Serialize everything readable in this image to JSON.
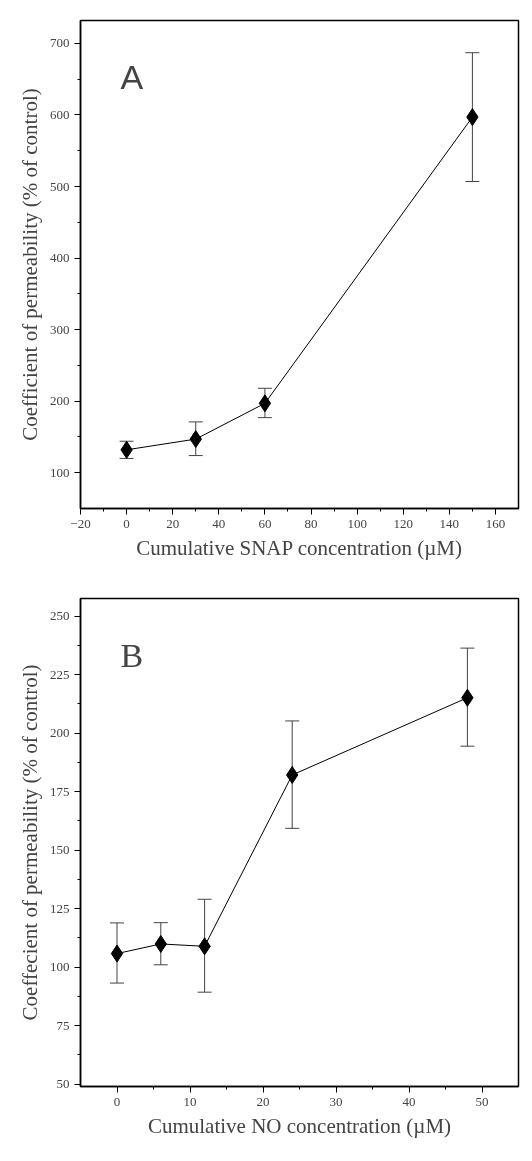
{
  "chart_data": [
    {
      "type": "line",
      "annotations": [
        "A"
      ],
      "xlabel": "Cumulative SNAP concentration (µM)",
      "ylabel": "Coefficient of permeability (% of control)",
      "x": [
        0,
        30,
        60,
        150
      ],
      "series": [
        {
          "color": "#000000",
          "values": [
            132,
            147,
            197,
            597
          ],
          "errors": [
            [
              120,
              144
            ],
            [
              124,
              171
            ],
            [
              177,
              218
            ],
            [
              507,
              687
            ]
          ]
        }
      ],
      "xlim": [
        -20,
        170
      ],
      "ylim": [
        50,
        732
      ],
      "xticks": [
        -20,
        0,
        20,
        40,
        60,
        80,
        100,
        120,
        140,
        160
      ],
      "yticks": [
        100,
        200,
        300,
        400,
        500,
        600,
        700
      ],
      "grid": false,
      "marker": "diamond",
      "line_style": "solid"
    },
    {
      "type": "line",
      "annotations": [
        "B"
      ],
      "xlabel": "Cumulative NO concentration (µM)",
      "ylabel": "Coeffecient of permeability (% of control)",
      "x": [
        0,
        6,
        12,
        24,
        48
      ],
      "series": [
        {
          "color": "#000000",
          "values": [
            105.8,
            109.9,
            108.9,
            182.1,
            215.1
          ],
          "errors": [
            [
              93.2,
              118.9
            ],
            [
              101,
              119
            ],
            [
              89.3,
              129
            ],
            [
              159.3,
              205.2
            ],
            [
              194.4,
              236.3
            ]
          ]
        }
      ],
      "xlim": [
        -5,
        55
      ],
      "ylim": [
        49,
        257.5
      ],
      "xticks": [
        0,
        10,
        20,
        30,
        40,
        50
      ],
      "yticks": [
        50,
        75,
        100,
        125,
        150,
        175,
        200,
        225,
        250
      ],
      "grid": false,
      "marker": "diamond",
      "line_style": "solid"
    }
  ]
}
